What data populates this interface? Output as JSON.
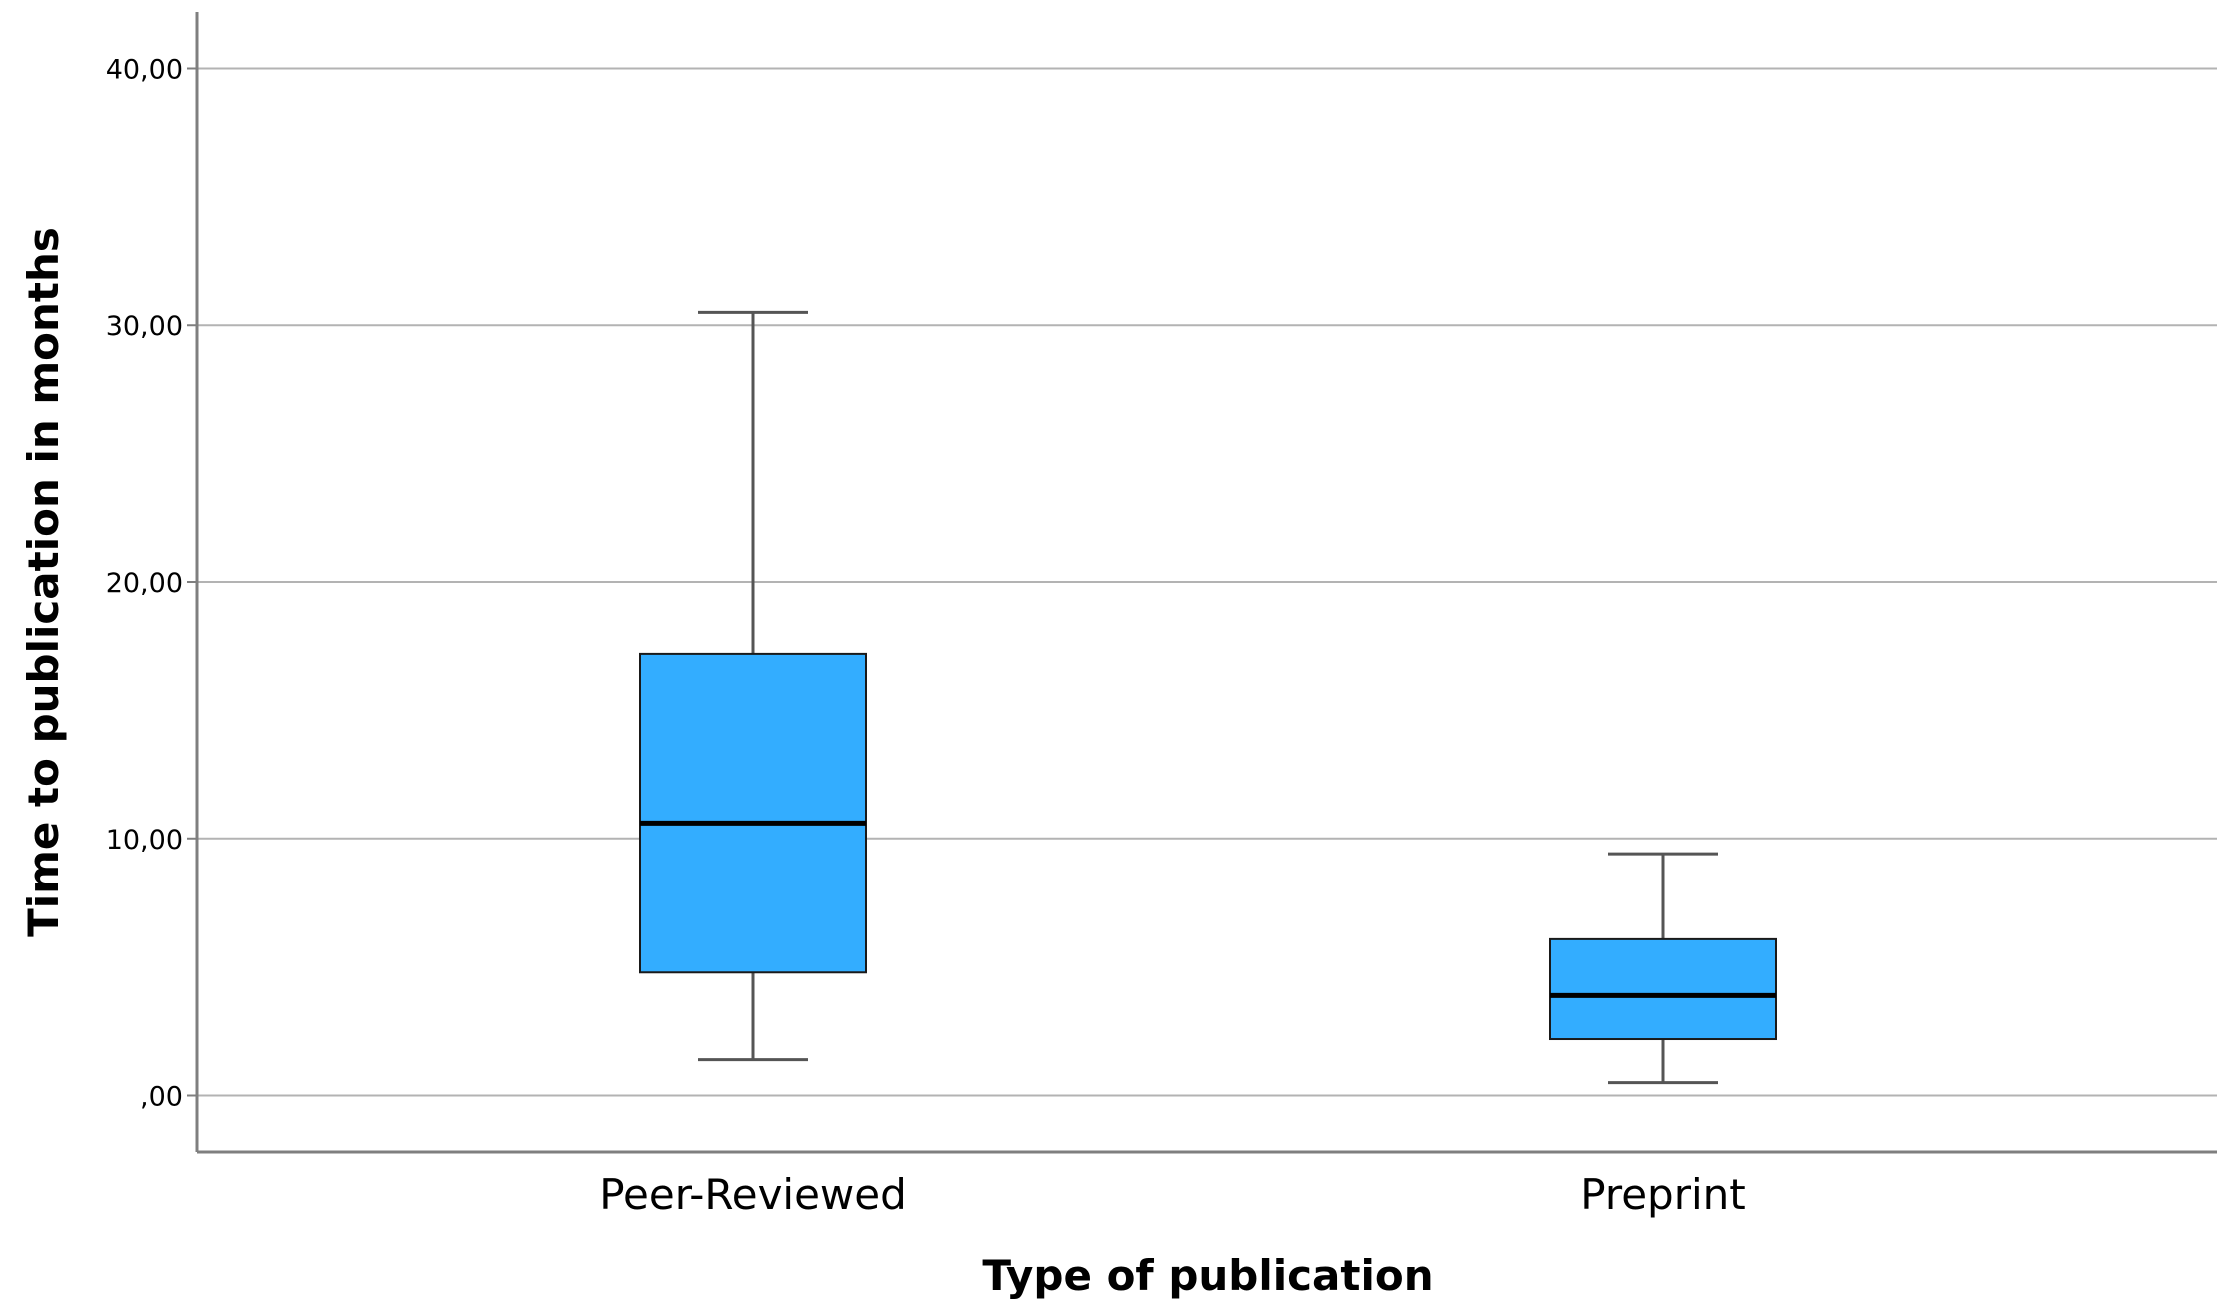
{
  "chart_data": {
    "type": "boxplot",
    "xlabel": "Type of publication",
    "ylabel": "Time to publication in months",
    "ylim": [
      -2.2,
      42.2
    ],
    "yticks": [
      0,
      10,
      20,
      30,
      40
    ],
    "ytick_labels": [
      ",00",
      "10,00",
      "20,00",
      "30,00",
      "40,00"
    ],
    "grid": "horizontal",
    "categories": [
      "Peer-Reviewed",
      "Preprint"
    ],
    "boxes": [
      {
        "min": 1.4,
        "q1": 4.8,
        "median": 10.6,
        "q3": 17.2,
        "max": 30.5
      },
      {
        "min": 0.5,
        "q1": 2.2,
        "median": 3.9,
        "q3": 6.1,
        "max": 9.4
      }
    ],
    "colors": {
      "box_fill": "#33adff",
      "box_stroke": "#1a1a1a",
      "median": "#000000",
      "whisker": "#555555",
      "grid": "#b3b3b3",
      "axis": "#7f7f7f"
    }
  }
}
